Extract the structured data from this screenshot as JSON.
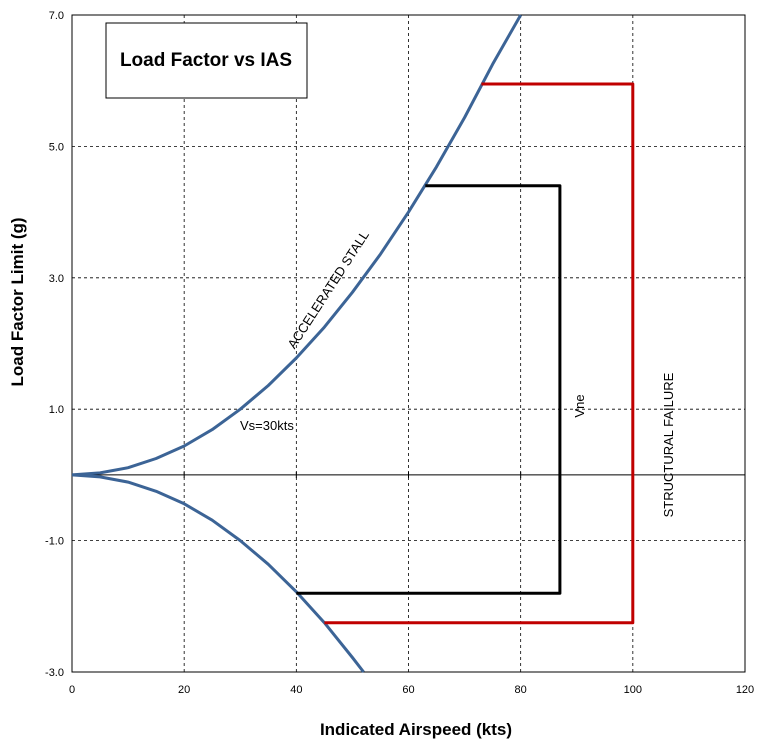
{
  "chart_data": {
    "type": "line",
    "title": "Load Factor vs IAS",
    "xlabel": "Indicated Airspeed (kts)",
    "ylabel": "Load Factor Limit (g)",
    "xlim": [
      0,
      120
    ],
    "ylim": [
      -3.0,
      7.0
    ],
    "x_ticks": [
      "0",
      "20",
      "40",
      "60",
      "80",
      "100",
      "120"
    ],
    "y_ticks": [
      "-3.0",
      "-1.0",
      "1.0",
      "3.0",
      "5.0",
      "7.0"
    ],
    "grid": true,
    "legend": "none",
    "series": [
      {
        "color": "#3c6496",
        "x": [
          0,
          5,
          10,
          15,
          20,
          25,
          30,
          35,
          40,
          45,
          50,
          55,
          60,
          65,
          70,
          75,
          80
        ],
        "y": [
          0,
          0.03,
          0.11,
          0.25,
          0.44,
          0.69,
          1.0,
          1.36,
          1.78,
          2.25,
          2.78,
          3.36,
          4.0,
          4.69,
          5.44,
          6.25,
          7.0
        ]
      },
      {
        "color": "#3c6496",
        "x": [
          0,
          5,
          10,
          15,
          20,
          25,
          30,
          35,
          40,
          45,
          50,
          52
        ],
        "y": [
          0,
          -0.03,
          -0.11,
          -0.25,
          -0.44,
          -0.69,
          -1.0,
          -1.36,
          -1.78,
          -2.25,
          -2.78,
          -3.0
        ]
      },
      {
        "color": "#000000",
        "x": [
          63,
          87,
          87,
          40
        ],
        "y": [
          4.4,
          4.4,
          -1.8,
          -1.8
        ]
      },
      {
        "color": "#c00000",
        "x": [
          73,
          100,
          100,
          45
        ],
        "y": [
          5.95,
          5.95,
          -2.25,
          -2.25
        ]
      }
    ],
    "annotations": {
      "accelerated_stall": "ACCELERATED STALL",
      "vs": "Vs=30kts",
      "vne": "Vne",
      "structural_failure": "STRUCTURAL FAILURE"
    }
  }
}
